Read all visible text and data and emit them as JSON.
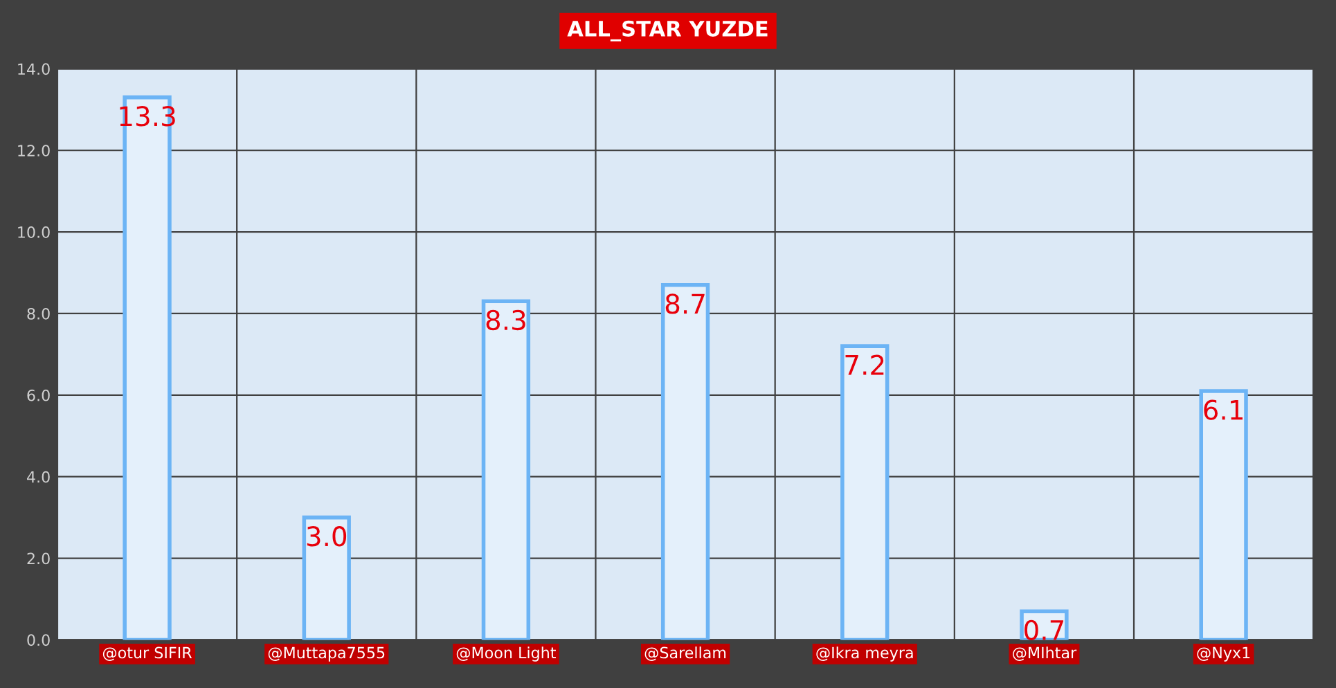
{
  "chart_data": {
    "type": "bar",
    "title": "ALL_STAR YUZDE",
    "categories": [
      "@otur SIFIR",
      "@Muttapa7555",
      "@Moon Light",
      "@Sarellam",
      "@Ikra meyra",
      "@MIhtar",
      "@Nyx1"
    ],
    "values": [
      13.3,
      3.0,
      8.3,
      8.7,
      7.2,
      0.7,
      6.1
    ],
    "color": "#6cb4f5",
    "value_labels": [
      "13.3",
      "3.0",
      "8.3",
      "8.7",
      "7.2",
      "0.7",
      "6.1"
    ],
    "ylim": [
      0,
      14
    ],
    "yticks": [
      {
        "value": 0,
        "label": "0.0"
      },
      {
        "value": 2,
        "label": "2.0"
      },
      {
        "value": 4,
        "label": "4.0"
      },
      {
        "value": 6,
        "label": "6.0"
      },
      {
        "value": 8,
        "label": "8.0"
      },
      {
        "value": 10,
        "label": "10.0"
      },
      {
        "value": 12,
        "label": "12.0"
      },
      {
        "value": 14,
        "label": "14.0"
      }
    ],
    "grid": true
  }
}
